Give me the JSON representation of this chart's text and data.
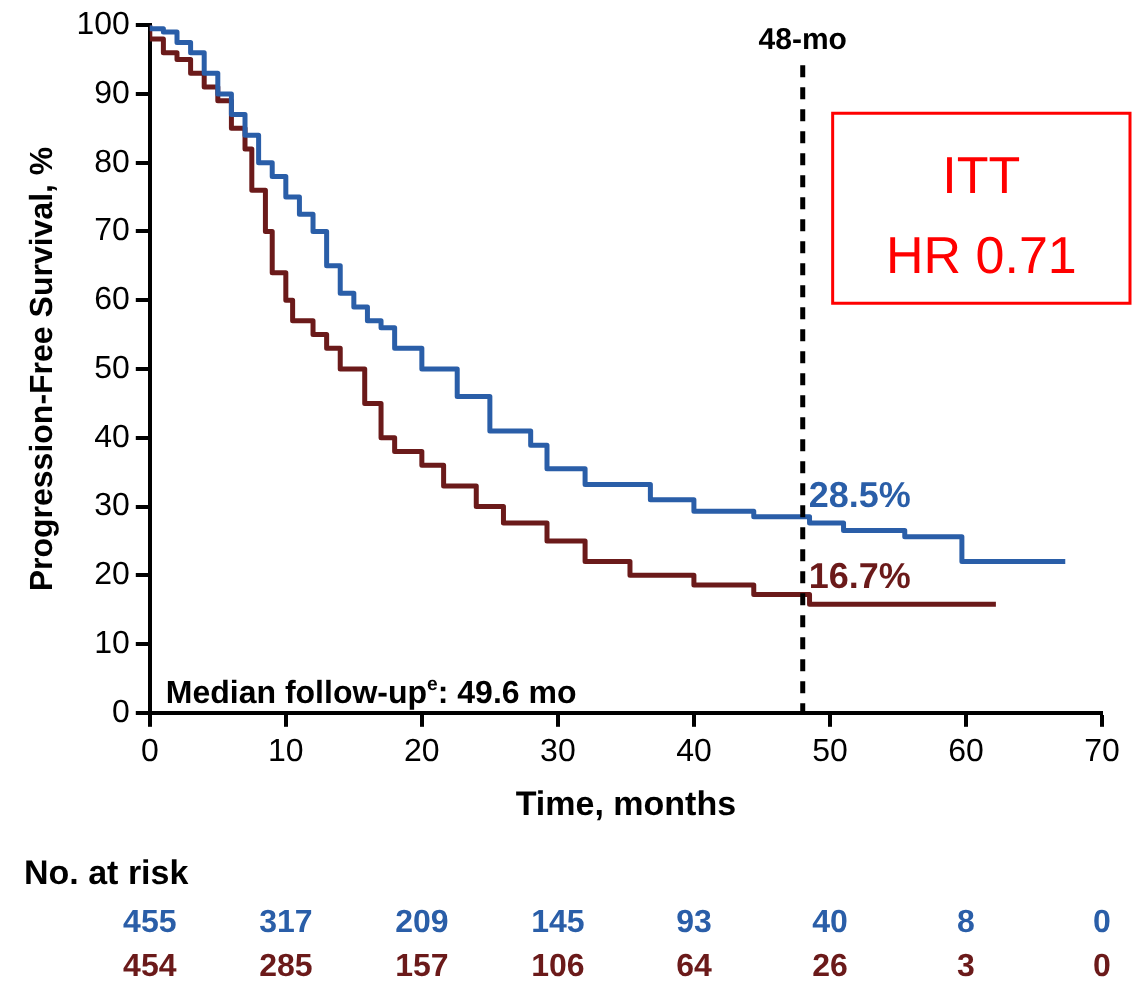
{
  "chart_data": {
    "type": "step",
    "xlabel": "Time, months",
    "ylabel": "Progression-Free Survival, %",
    "xlim": [
      0,
      70
    ],
    "xticks": [
      0,
      10,
      20,
      30,
      40,
      50,
      60,
      70
    ],
    "ylim": [
      0,
      100
    ],
    "yticks": [
      0,
      10,
      20,
      30,
      40,
      50,
      60,
      70,
      80,
      90,
      100
    ],
    "grid": false,
    "legend": false,
    "marker": "none",
    "series": [
      {
        "color": "#2a5ea8",
        "x": [
          0,
          1,
          2,
          3,
          4,
          5,
          6,
          7,
          8,
          9,
          10,
          11,
          12,
          13,
          14,
          15,
          16,
          17,
          18,
          20,
          22.6,
          25,
          28,
          29.2,
          32,
          36.8,
          40,
          44.4,
          48.5,
          51,
          55.5,
          59.7,
          60.9,
          64,
          67.3
        ],
        "values": [
          100,
          99.5,
          99,
          97.5,
          96,
          93,
          90,
          87,
          84,
          80,
          78,
          75,
          72.5,
          70,
          65,
          61,
          59,
          57,
          56,
          53,
          50,
          46,
          41,
          38.9,
          35.5,
          33.2,
          31,
          29.3,
          28.5,
          27.6,
          26.5,
          25.6,
          22,
          22,
          22
        ]
      },
      {
        "color": "#6b1a1a",
        "x": [
          0,
          1,
          2,
          3,
          4,
          5,
          6,
          7,
          7.5,
          8.5,
          9,
          10,
          10.5,
          12,
          13,
          14,
          15.8,
          17,
          18,
          20,
          21.6,
          24,
          26,
          29.2,
          32,
          35.3,
          40,
          44.4,
          48.5,
          49.5,
          55,
          62.2
        ],
        "values": [
          100,
          98,
          96,
          95,
          93,
          91,
          89,
          85,
          82,
          76,
          70,
          64,
          60,
          57,
          55,
          53,
          50,
          45,
          40,
          38,
          36,
          33,
          30,
          27.6,
          25,
          22,
          20,
          18.6,
          17.2,
          15.8,
          15.8,
          15.8
        ]
      }
    ],
    "ref_lines": [
      {
        "axis": "x",
        "value": 48,
        "label": "48-mo",
        "color": "#000000",
        "line_style": "dashed"
      }
    ],
    "annotations": [
      {
        "text": "28.5%",
        "x": 48,
        "y": 28.5
      },
      {
        "text": "16.7%",
        "x": 48,
        "y": 16.7
      },
      "ITT",
      "HR 0.71",
      "Median follow-up$^{e}$: 49.6 mo",
      "No. at risk",
      "455 317 209 145 93 40 8 0",
      "454 285 157 106 64 26 3 0"
    ]
  }
}
